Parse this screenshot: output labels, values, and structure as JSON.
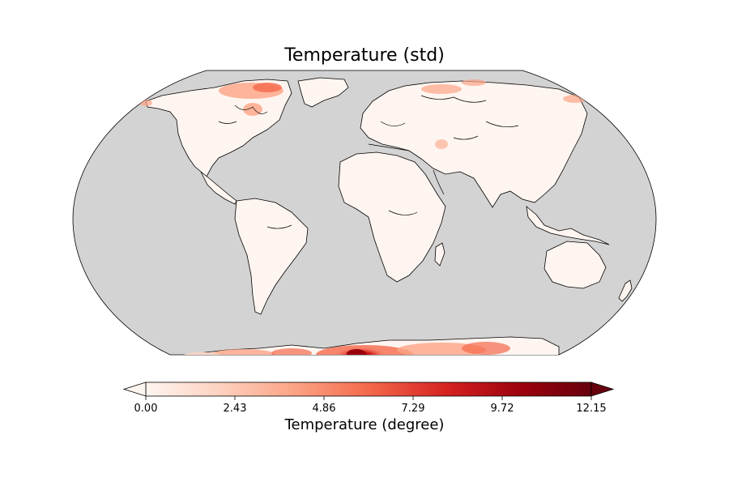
{
  "figure": {
    "title": "Temperature (std)",
    "colorbar": {
      "label": "Temperature (degree)",
      "ticks": [
        "0.00",
        "2.43",
        "4.86",
        "7.29",
        "9.72",
        "12.15"
      ],
      "min": 0.0,
      "max": 12.15,
      "extend": "both",
      "colormap": [
        "#fff5f0",
        "#fdd5c4",
        "#fca486",
        "#f4694b",
        "#d42020",
        "#99000d",
        "#67000d"
      ]
    },
    "map": {
      "projection": "Robinson",
      "ocean_color": "#d3d3d3",
      "land_color": "#fff5f0",
      "coastline_color": "#000000"
    }
  }
}
